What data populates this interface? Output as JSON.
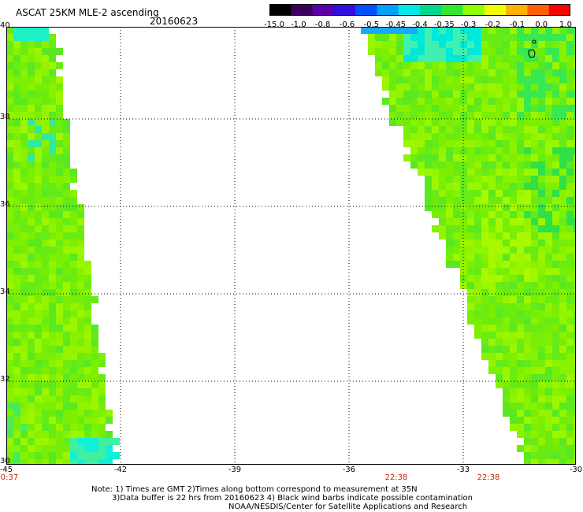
{
  "header": {
    "title": "ASCAT 25KM MLE-2 ascending",
    "date": "20160623"
  },
  "colorbar": {
    "labels": [
      "-15.0",
      "-1.0",
      "-0.8",
      "-0.6",
      "-0.5",
      "-0.45",
      "-0.4",
      "-0.35",
      "-0.3",
      "-0.2",
      "-0.1",
      "0.0",
      "1.0"
    ],
    "colors": [
      "#000000",
      "#3a005a",
      "#5c00a8",
      "#3010e0",
      "#0050ff",
      "#00a0ff",
      "#00e8e8",
      "#00d890",
      "#30e830",
      "#90ff00",
      "#f0ff00",
      "#ffb000",
      "#ff6000",
      "#ff0000"
    ]
  },
  "map": {
    "y_labels": [
      "40",
      "38",
      "36",
      "34",
      "32",
      "30"
    ],
    "x_labels": [
      "-45",
      "-42",
      "-39",
      "-36",
      "-33",
      "-30"
    ],
    "time_labels": [
      "0:37",
      "22:38",
      "22:38"
    ],
    "lat_range": [
      30,
      40
    ],
    "lon_range": [
      -45,
      -30
    ]
  },
  "notes": {
    "line1": "Note: 1) Times are GMT 2)Times along bottom correspond to measurement at 35N",
    "line2": "3)Data buffer is 22 hrs from 20160623 4) Black wind barbs indicate possible contamination",
    "line3": "NOAA/NESDIS/Center for Satellite Applications and Research"
  }
}
